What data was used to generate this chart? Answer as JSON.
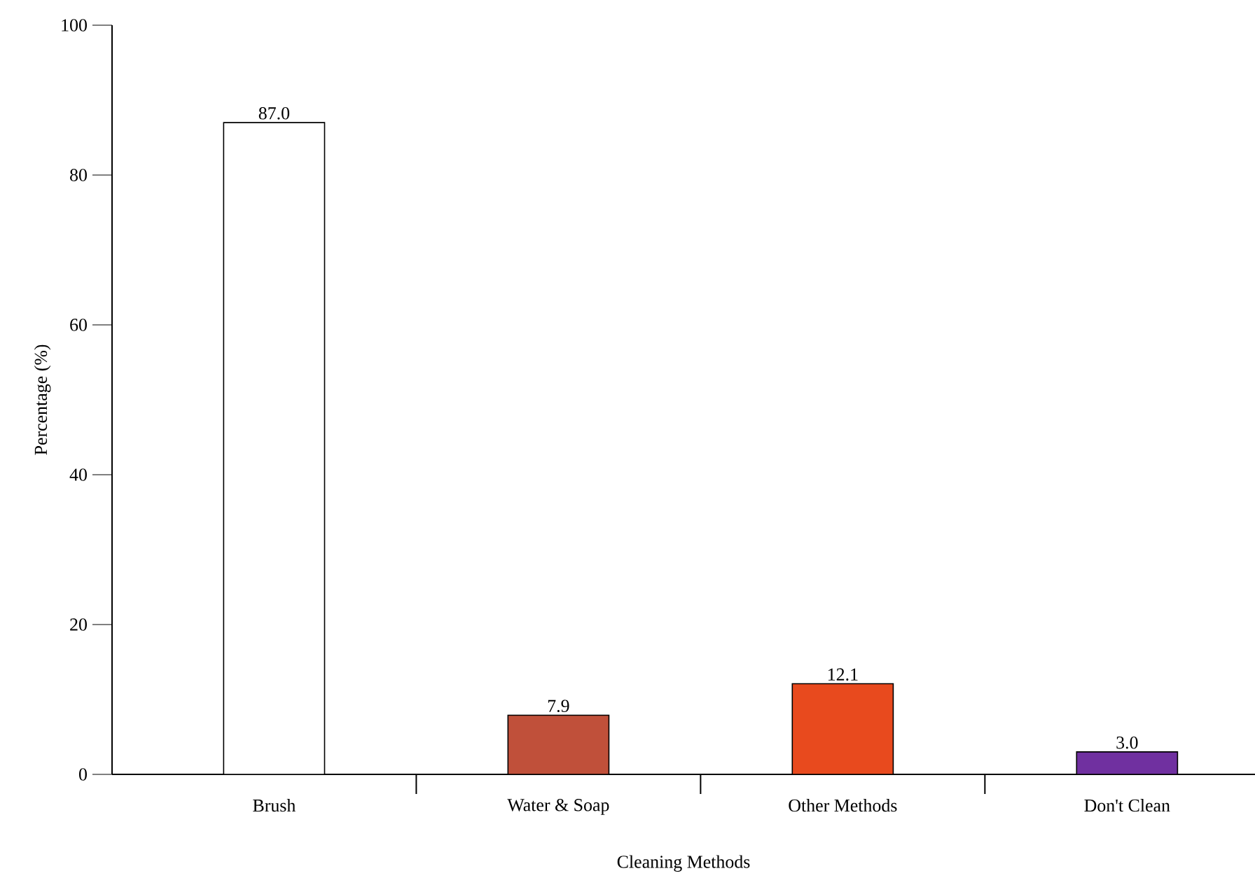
{
  "chart_data": {
    "type": "bar",
    "xlabel": "Cleaning Methods",
    "ylabel": "Percentage (%)",
    "categories": [
      "Brush",
      "Water & Soap",
      "Other Methods",
      "Don't Clean"
    ],
    "values": [
      87.0,
      7.9,
      12.1,
      3.0
    ],
    "colors": [
      "#ffffff",
      "#c0503a",
      "#e84a1e",
      "#7030a0"
    ],
    "value_labels": [
      "87.0",
      "7.9",
      "12.1",
      "3.0"
    ],
    "ylim": [
      0,
      100
    ],
    "yticks": [
      0,
      20,
      40,
      60,
      80,
      100
    ],
    "grid": false
  }
}
